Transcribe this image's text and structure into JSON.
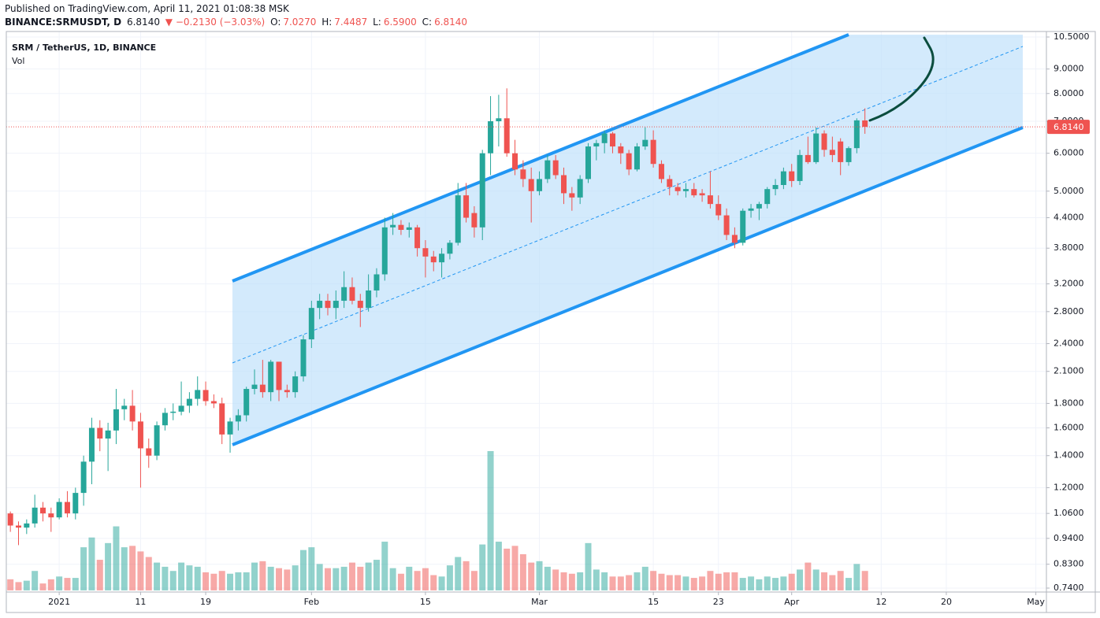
{
  "header": {
    "published": "Published on TradingView.com, April 11, 2021 01:08:38 MSK",
    "symbol": "BINANCE:SRMUSDT, D",
    "price": "6.8140",
    "change": "▼ −0.2130 (−3.03%)",
    "o_label": "O:",
    "o": "7.0270",
    "h_label": "H:",
    "h": "7.4487",
    "l_label": "L:",
    "l": "6.5900",
    "c_label": "C:",
    "c": "6.8140"
  },
  "chart_data": {
    "type": "candlestick",
    "legend_title": "SRM / TetherUS, 1D, BINANCE",
    "volume_label": "Vol",
    "up_color": "#26a69a",
    "down_color": "#ef5350",
    "log_scale": true,
    "grid": true,
    "last_price": {
      "value": 6.814,
      "label": "6.8140"
    },
    "xlim": [
      -6.5,
      121.3
    ],
    "xticks": [
      {
        "value": 0,
        "label": "2021"
      },
      {
        "value": 10,
        "label": "11"
      },
      {
        "value": 18,
        "label": "19"
      },
      {
        "value": 31,
        "label": "Feb"
      },
      {
        "value": 45,
        "label": "15"
      },
      {
        "value": 59,
        "label": "Mar"
      },
      {
        "value": 73,
        "label": "15"
      },
      {
        "value": 81,
        "label": "23"
      },
      {
        "value": 90,
        "label": "Apr"
      },
      {
        "value": 101,
        "label": "12"
      },
      {
        "value": 109,
        "label": "20"
      },
      {
        "value": 120,
        "label": "May"
      }
    ],
    "ylim": [
      0.74,
      10.5
    ],
    "yticks": [
      {
        "value": 10.5,
        "label": "10.5000"
      },
      {
        "value": 9,
        "label": "9.0000"
      },
      {
        "value": 8,
        "label": "8.0000"
      },
      {
        "value": 7,
        "label": "7.0000"
      },
      {
        "value": 6,
        "label": "6.0000"
      },
      {
        "value": 5,
        "label": "5.0000"
      },
      {
        "value": 4.4,
        "label": "4.4000"
      },
      {
        "value": 3.8,
        "label": "3.8000"
      },
      {
        "value": 3.2,
        "label": "3.2000"
      },
      {
        "value": 2.8,
        "label": "2.8000"
      },
      {
        "value": 2.4,
        "label": "2.4000"
      },
      {
        "value": 2.1,
        "label": "2.1000"
      },
      {
        "value": 1.8,
        "label": "1.8000"
      },
      {
        "value": 1.6,
        "label": "1.6000"
      },
      {
        "value": 1.4,
        "label": "1.4000"
      },
      {
        "value": 1.2,
        "label": "1.2000"
      },
      {
        "value": 1.06,
        "label": "1.0600"
      },
      {
        "value": 0.94,
        "label": "0.9400"
      },
      {
        "value": 0.83,
        "label": "0.8300"
      },
      {
        "value": 0.74,
        "label": "0.7400"
      }
    ],
    "x": [
      -6,
      -5,
      -4,
      -3,
      -2,
      -1,
      0,
      1,
      2,
      3,
      4,
      5,
      6,
      7,
      8,
      9,
      10,
      11,
      12,
      13,
      14,
      15,
      16,
      17,
      18,
      19,
      20,
      21,
      22,
      23,
      24,
      25,
      26,
      27,
      28,
      29,
      30,
      31,
      32,
      33,
      34,
      35,
      36,
      37,
      38,
      39,
      40,
      41,
      42,
      43,
      44,
      45,
      46,
      47,
      48,
      49,
      50,
      51,
      52,
      53,
      54,
      55,
      56,
      57,
      58,
      59,
      60,
      61,
      62,
      63,
      64,
      65,
      66,
      67,
      68,
      69,
      70,
      71,
      72,
      73,
      74,
      75,
      76,
      77,
      78,
      79,
      80,
      81,
      82,
      83,
      84,
      85,
      86,
      87,
      88,
      89,
      90,
      91,
      92,
      93,
      94,
      95,
      96,
      97,
      98,
      99
    ],
    "open": [
      1.06,
      1.0,
      0.99,
      1.01,
      1.09,
      1.06,
      1.04,
      1.12,
      1.06,
      1.17,
      1.36,
      1.6,
      1.52,
      1.58,
      1.75,
      1.78,
      1.65,
      1.45,
      1.4,
      1.62,
      1.72,
      1.73,
      1.78,
      1.84,
      1.92,
      1.82,
      1.8,
      1.55,
      1.65,
      1.7,
      1.93,
      1.97,
      1.9,
      2.2,
      1.92,
      1.9,
      2.05,
      2.45,
      2.85,
      2.95,
      2.85,
      2.95,
      3.15,
      2.95,
      2.85,
      3.1,
      3.35,
      4.2,
      4.25,
      4.15,
      4.2,
      3.8,
      3.65,
      3.55,
      3.7,
      3.9,
      4.9,
      4.5,
      4.2,
      6.0,
      7.0,
      7.1,
      6.0,
      5.55,
      5.3,
      5.0,
      5.3,
      5.8,
      5.4,
      4.95,
      4.85,
      5.3,
      6.2,
      6.3,
      6.6,
      6.2,
      6.0,
      5.55,
      6.2,
      6.4,
      5.7,
      5.3,
      5.1,
      5.0,
      5.05,
      4.95,
      4.9,
      4.7,
      4.45,
      4.05,
      3.9,
      4.55,
      4.6,
      4.7,
      5.05,
      5.15,
      5.5,
      5.25,
      5.95,
      5.75,
      6.6,
      6.1,
      6.35,
      5.75,
      6.15,
      7.027
    ],
    "high": [
      1.07,
      1.02,
      1.03,
      1.16,
      1.12,
      1.09,
      1.14,
      1.18,
      1.2,
      1.4,
      1.68,
      1.66,
      1.64,
      1.93,
      1.84,
      1.92,
      1.72,
      1.52,
      1.65,
      1.76,
      1.8,
      2.0,
      1.9,
      2.05,
      2.0,
      1.88,
      1.85,
      1.68,
      1.75,
      1.95,
      2.12,
      2.22,
      2.22,
      2.2,
      1.97,
      2.1,
      2.5,
      2.95,
      3.05,
      3.05,
      3.1,
      3.4,
      3.3,
      3.05,
      3.35,
      3.45,
      4.4,
      4.5,
      4.35,
      4.3,
      4.25,
      3.95,
      3.75,
      3.8,
      3.95,
      5.2,
      5.2,
      4.65,
      6.1,
      7.9,
      7.95,
      8.2,
      6.4,
      5.8,
      5.6,
      5.5,
      5.95,
      5.95,
      5.6,
      5.1,
      5.4,
      6.3,
      6.4,
      6.7,
      6.65,
      6.3,
      6.1,
      6.3,
      6.8,
      6.7,
      5.8,
      5.4,
      5.2,
      5.2,
      5.2,
      5.05,
      5.5,
      4.9,
      4.6,
      4.2,
      4.6,
      4.7,
      4.75,
      5.1,
      5.3,
      5.6,
      5.7,
      6.1,
      6.5,
      6.8,
      6.7,
      6.5,
      6.45,
      6.2,
      7.1,
      7.4487
    ],
    "low": [
      0.97,
      0.91,
      0.96,
      0.99,
      1.02,
      0.97,
      1.03,
      1.04,
      1.03,
      1.1,
      1.22,
      1.43,
      1.3,
      1.48,
      1.66,
      1.58,
      1.2,
      1.32,
      1.37,
      1.58,
      1.66,
      1.7,
      1.72,
      1.78,
      1.78,
      1.76,
      1.48,
      1.42,
      1.58,
      1.65,
      1.88,
      1.85,
      1.82,
      1.82,
      1.85,
      1.85,
      2.0,
      2.35,
      2.7,
      2.75,
      2.7,
      2.85,
      2.9,
      2.6,
      2.8,
      3.0,
      3.25,
      4.05,
      4.05,
      4.0,
      3.65,
      3.3,
      3.4,
      3.3,
      3.6,
      3.85,
      4.3,
      4.0,
      3.95,
      5.4,
      6.2,
      5.9,
      5.4,
      5.1,
      4.3,
      4.9,
      5.2,
      5.3,
      4.7,
      4.55,
      4.7,
      5.2,
      5.8,
      6.0,
      6.0,
      5.7,
      5.4,
      5.5,
      6.1,
      5.6,
      5.2,
      4.9,
      4.9,
      4.85,
      4.85,
      4.75,
      4.6,
      4.35,
      3.95,
      3.8,
      3.85,
      4.4,
      4.35,
      4.6,
      4.9,
      5.05,
      5.1,
      5.15,
      5.7,
      5.7,
      5.9,
      5.75,
      5.4,
      5.65,
      6.0,
      6.59
    ],
    "close": [
      1.0,
      0.99,
      1.01,
      1.09,
      1.06,
      1.04,
      1.12,
      1.06,
      1.17,
      1.36,
      1.6,
      1.52,
      1.58,
      1.75,
      1.78,
      1.65,
      1.45,
      1.4,
      1.62,
      1.72,
      1.73,
      1.78,
      1.84,
      1.92,
      1.82,
      1.8,
      1.55,
      1.65,
      1.7,
      1.93,
      1.97,
      1.9,
      2.2,
      1.92,
      1.9,
      2.05,
      2.45,
      2.85,
      2.95,
      2.85,
      2.95,
      3.15,
      2.95,
      2.85,
      3.1,
      3.35,
      4.2,
      4.25,
      4.15,
      4.2,
      3.8,
      3.65,
      3.55,
      3.7,
      3.9,
      4.9,
      4.4,
      4.2,
      6.0,
      7.0,
      7.1,
      6.0,
      5.55,
      5.3,
      5.0,
      5.3,
      5.8,
      5.4,
      4.95,
      4.85,
      5.3,
      6.2,
      6.3,
      6.6,
      6.2,
      6.0,
      5.55,
      6.2,
      6.4,
      5.7,
      5.3,
      5.1,
      5.0,
      5.05,
      4.9,
      4.9,
      4.7,
      4.45,
      4.05,
      3.9,
      4.55,
      4.6,
      4.7,
      5.05,
      5.15,
      5.5,
      5.25,
      5.95,
      5.75,
      6.6,
      6.1,
      5.95,
      5.75,
      6.15,
      7.03,
      6.814
    ],
    "volume": [
      8,
      6,
      7,
      14,
      5,
      8,
      10,
      9,
      9,
      31,
      38,
      22,
      34,
      46,
      31,
      32,
      28,
      24,
      20,
      17,
      14,
      20,
      18,
      17,
      13,
      12,
      14,
      12,
      13,
      13,
      20,
      21,
      17,
      16,
      15,
      18,
      29,
      31,
      19,
      16,
      16,
      17,
      20,
      17,
      20,
      22,
      35,
      16,
      12,
      17,
      14,
      16,
      11,
      10,
      18,
      24,
      21,
      14,
      33,
      100,
      35,
      30,
      32,
      26,
      20,
      21,
      17,
      15,
      13,
      12,
      13,
      34,
      15,
      13,
      10,
      10,
      11,
      13,
      17,
      14,
      12,
      11,
      11,
      10,
      9,
      10,
      14,
      12,
      13,
      13,
      9,
      10,
      8,
      10,
      9,
      10,
      12,
      15,
      20,
      15,
      13,
      11,
      14,
      9,
      19,
      14
    ]
  }
}
